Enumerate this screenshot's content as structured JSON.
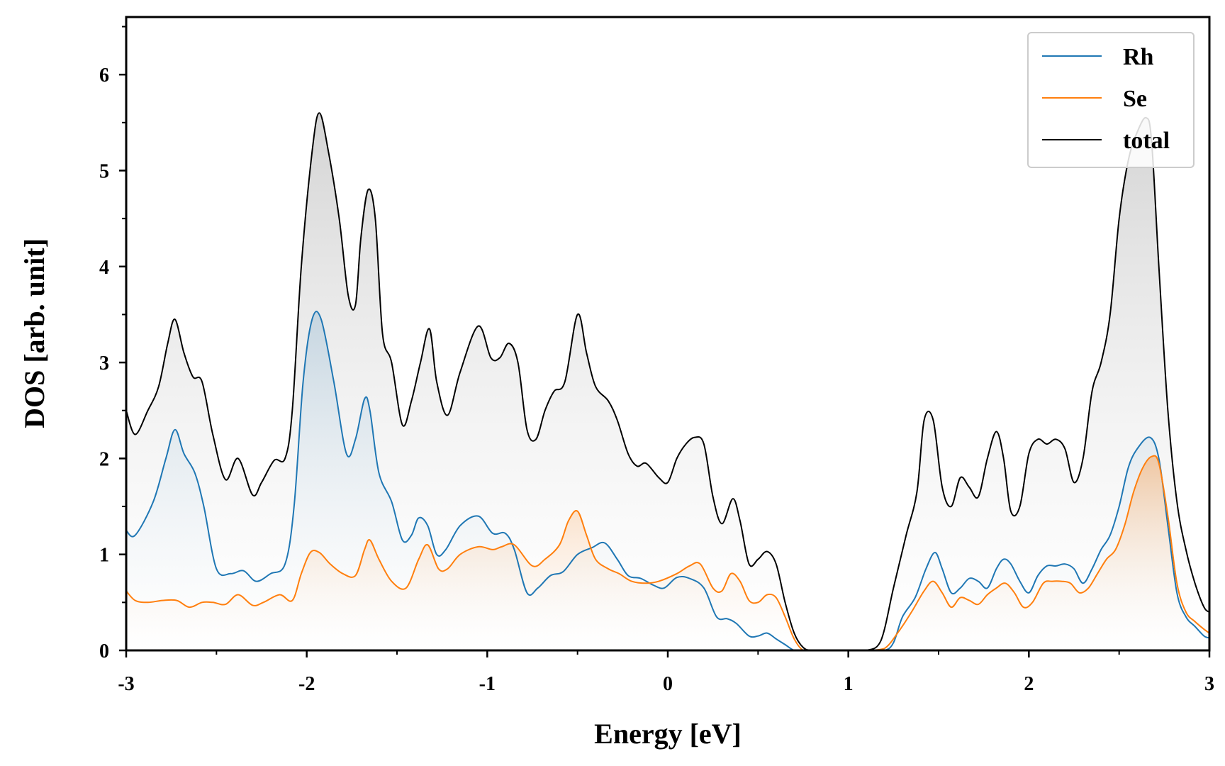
{
  "chart_data": {
    "type": "area",
    "xlabel": "Energy [eV]",
    "ylabel": "DOS [arb. unit]",
    "xlim": [
      -3,
      3
    ],
    "ylim": [
      0,
      6.6
    ],
    "x_ticks": [
      -3,
      -2,
      -1,
      0,
      1,
      2,
      3
    ],
    "x_tick_labels": [
      "-3",
      "-2",
      "-1",
      "0",
      "1",
      "2",
      "3"
    ],
    "y_ticks": [
      0,
      1,
      2,
      3,
      4,
      5,
      6
    ],
    "y_tick_labels": [
      "0",
      "1",
      "2",
      "3",
      "4",
      "5",
      "6"
    ],
    "grid": false,
    "legend_position": "top-right",
    "series": [
      {
        "name": "Rh",
        "color": "#1f77b4",
        "x": [
          -3.0,
          -2.95,
          -2.85,
          -2.78,
          -2.73,
          -2.68,
          -2.62,
          -2.57,
          -2.5,
          -2.42,
          -2.35,
          -2.28,
          -2.2,
          -2.12,
          -2.07,
          -2.02,
          -1.97,
          -1.92,
          -1.85,
          -1.78,
          -1.73,
          -1.68,
          -1.65,
          -1.6,
          -1.53,
          -1.47,
          -1.42,
          -1.38,
          -1.33,
          -1.28,
          -1.23,
          -1.15,
          -1.05,
          -0.97,
          -0.9,
          -0.85,
          -0.78,
          -0.72,
          -0.65,
          -0.58,
          -0.5,
          -0.42,
          -0.35,
          -0.28,
          -0.22,
          -0.15,
          -0.08,
          -0.02,
          0.05,
          0.12,
          0.2,
          0.27,
          0.33,
          0.38,
          0.45,
          0.5,
          0.55,
          0.6,
          0.65,
          0.7,
          0.75,
          0.8,
          0.9,
          1.0,
          1.1,
          1.2,
          1.25,
          1.3,
          1.37,
          1.43,
          1.48,
          1.52,
          1.57,
          1.62,
          1.67,
          1.72,
          1.77,
          1.82,
          1.86,
          1.9,
          1.95,
          2.0,
          2.05,
          2.1,
          2.15,
          2.2,
          2.25,
          2.3,
          2.35,
          2.4,
          2.45,
          2.5,
          2.55,
          2.6,
          2.67,
          2.72,
          2.77,
          2.82,
          2.87,
          2.92,
          2.97,
          3.0
        ],
        "y": [
          1.25,
          1.2,
          1.55,
          2.0,
          2.3,
          2.05,
          1.85,
          1.5,
          0.85,
          0.8,
          0.83,
          0.72,
          0.8,
          0.9,
          1.5,
          2.8,
          3.45,
          3.45,
          2.8,
          2.05,
          2.2,
          2.62,
          2.5,
          1.85,
          1.55,
          1.15,
          1.2,
          1.38,
          1.3,
          1.0,
          1.05,
          1.3,
          1.4,
          1.22,
          1.22,
          1.05,
          0.6,
          0.65,
          0.78,
          0.82,
          1.0,
          1.07,
          1.12,
          0.95,
          0.78,
          0.75,
          0.68,
          0.65,
          0.76,
          0.75,
          0.65,
          0.35,
          0.33,
          0.28,
          0.15,
          0.15,
          0.18,
          0.12,
          0.06,
          0.0,
          0.0,
          0.0,
          0.0,
          0.0,
          0.0,
          0.0,
          0.08,
          0.35,
          0.55,
          0.85,
          1.02,
          0.85,
          0.6,
          0.65,
          0.75,
          0.72,
          0.65,
          0.85,
          0.95,
          0.9,
          0.72,
          0.6,
          0.78,
          0.88,
          0.88,
          0.9,
          0.85,
          0.7,
          0.85,
          1.05,
          1.2,
          1.5,
          1.9,
          2.1,
          2.22,
          2.0,
          1.3,
          0.6,
          0.35,
          0.25,
          0.15,
          0.13
        ]
      },
      {
        "name": "Se",
        "color": "#ff7f0e",
        "x": [
          -3.0,
          -2.95,
          -2.88,
          -2.8,
          -2.72,
          -2.65,
          -2.58,
          -2.52,
          -2.45,
          -2.38,
          -2.3,
          -2.24,
          -2.15,
          -2.08,
          -2.03,
          -1.98,
          -1.93,
          -1.87,
          -1.8,
          -1.73,
          -1.68,
          -1.65,
          -1.6,
          -1.53,
          -1.45,
          -1.38,
          -1.33,
          -1.27,
          -1.22,
          -1.15,
          -1.05,
          -0.97,
          -0.92,
          -0.85,
          -0.75,
          -0.68,
          -0.6,
          -0.55,
          -0.5,
          -0.45,
          -0.4,
          -0.33,
          -0.27,
          -0.2,
          -0.12,
          -0.05,
          0.05,
          0.12,
          0.18,
          0.25,
          0.3,
          0.35,
          0.4,
          0.45,
          0.5,
          0.55,
          0.6,
          0.65,
          0.7,
          0.75,
          0.8,
          0.9,
          1.0,
          1.1,
          1.2,
          1.28,
          1.35,
          1.42,
          1.47,
          1.52,
          1.57,
          1.62,
          1.67,
          1.72,
          1.77,
          1.82,
          1.87,
          1.92,
          1.97,
          2.02,
          2.08,
          2.13,
          2.18,
          2.23,
          2.28,
          2.33,
          2.38,
          2.43,
          2.48,
          2.53,
          2.58,
          2.63,
          2.68,
          2.72,
          2.77,
          2.82,
          2.87,
          2.92,
          2.97,
          3.0
        ],
        "y": [
          0.62,
          0.52,
          0.5,
          0.52,
          0.52,
          0.45,
          0.5,
          0.5,
          0.48,
          0.58,
          0.47,
          0.5,
          0.58,
          0.52,
          0.8,
          1.02,
          1.02,
          0.9,
          0.8,
          0.78,
          1.05,
          1.15,
          0.95,
          0.72,
          0.65,
          0.95,
          1.1,
          0.85,
          0.85,
          1.0,
          1.08,
          1.05,
          1.08,
          1.1,
          0.88,
          0.95,
          1.1,
          1.35,
          1.45,
          1.2,
          0.95,
          0.85,
          0.8,
          0.72,
          0.7,
          0.72,
          0.8,
          0.88,
          0.9,
          0.65,
          0.62,
          0.8,
          0.72,
          0.52,
          0.5,
          0.58,
          0.55,
          0.35,
          0.12,
          0.0,
          0.0,
          0.0,
          0.0,
          0.0,
          0.02,
          0.2,
          0.4,
          0.62,
          0.72,
          0.6,
          0.45,
          0.55,
          0.52,
          0.48,
          0.58,
          0.65,
          0.7,
          0.6,
          0.45,
          0.5,
          0.7,
          0.72,
          0.72,
          0.7,
          0.6,
          0.65,
          0.8,
          0.95,
          1.05,
          1.3,
          1.65,
          1.9,
          2.02,
          1.95,
          1.4,
          0.7,
          0.4,
          0.3,
          0.22,
          0.18
        ]
      },
      {
        "name": "total",
        "color": "#000000",
        "x": [
          -3.0,
          -2.95,
          -2.88,
          -2.82,
          -2.77,
          -2.73,
          -2.68,
          -2.63,
          -2.58,
          -2.52,
          -2.45,
          -2.38,
          -2.3,
          -2.25,
          -2.18,
          -2.12,
          -2.08,
          -2.03,
          -1.97,
          -1.93,
          -1.88,
          -1.82,
          -1.77,
          -1.73,
          -1.7,
          -1.66,
          -1.62,
          -1.58,
          -1.53,
          -1.47,
          -1.42,
          -1.37,
          -1.32,
          -1.28,
          -1.22,
          -1.15,
          -1.05,
          -0.98,
          -0.93,
          -0.88,
          -0.83,
          -0.78,
          -0.73,
          -0.68,
          -0.63,
          -0.57,
          -0.5,
          -0.45,
          -0.4,
          -0.33,
          -0.28,
          -0.22,
          -0.17,
          -0.12,
          -0.05,
          0.0,
          0.05,
          0.1,
          0.15,
          0.2,
          0.25,
          0.3,
          0.36,
          0.4,
          0.45,
          0.5,
          0.55,
          0.6,
          0.65,
          0.7,
          0.75,
          0.8,
          0.9,
          1.0,
          1.1,
          1.18,
          1.25,
          1.32,
          1.38,
          1.42,
          1.47,
          1.52,
          1.57,
          1.62,
          1.67,
          1.72,
          1.77,
          1.82,
          1.86,
          1.9,
          1.95,
          2.0,
          2.05,
          2.1,
          2.15,
          2.2,
          2.25,
          2.3,
          2.35,
          2.4,
          2.45,
          2.5,
          2.55,
          2.6,
          2.65,
          2.68,
          2.72,
          2.77,
          2.82,
          2.87,
          2.92,
          2.97,
          3.0
        ],
        "y": [
          2.5,
          2.25,
          2.5,
          2.75,
          3.2,
          3.45,
          3.1,
          2.85,
          2.8,
          2.25,
          1.78,
          2.0,
          1.62,
          1.75,
          1.98,
          2.0,
          2.5,
          4.0,
          5.2,
          5.6,
          5.2,
          4.5,
          3.7,
          3.6,
          4.3,
          4.8,
          4.5,
          3.3,
          3.0,
          2.35,
          2.6,
          3.0,
          3.35,
          2.8,
          2.45,
          2.9,
          3.38,
          3.05,
          3.05,
          3.2,
          3.0,
          2.3,
          2.2,
          2.5,
          2.7,
          2.8,
          3.5,
          3.1,
          2.75,
          2.6,
          2.4,
          2.05,
          1.92,
          1.95,
          1.8,
          1.75,
          2.0,
          2.15,
          2.22,
          2.15,
          1.6,
          1.32,
          1.58,
          1.35,
          0.9,
          0.95,
          1.03,
          0.9,
          0.5,
          0.18,
          0.03,
          0.0,
          0.0,
          0.0,
          0.0,
          0.1,
          0.65,
          1.2,
          1.65,
          2.4,
          2.4,
          1.7,
          1.5,
          1.8,
          1.7,
          1.6,
          2.0,
          2.28,
          2.0,
          1.45,
          1.5,
          2.05,
          2.2,
          2.15,
          2.2,
          2.1,
          1.75,
          2.0,
          2.7,
          3.0,
          3.5,
          4.5,
          5.1,
          5.4,
          5.55,
          5.3,
          4.0,
          2.5,
          1.55,
          1.05,
          0.7,
          0.45,
          0.4
        ]
      }
    ]
  }
}
